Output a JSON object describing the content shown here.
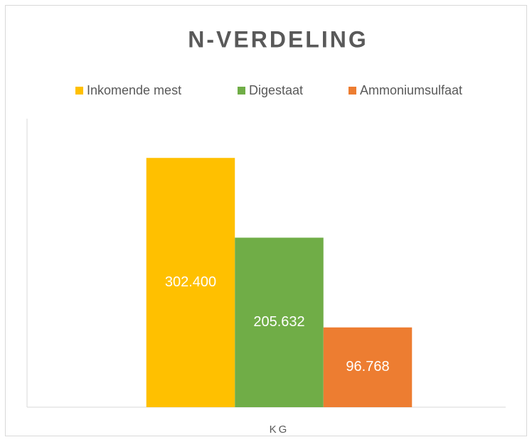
{
  "chart_data": {
    "type": "bar",
    "title": "N-VERDELING",
    "categories": [
      "KG"
    ],
    "series": [
      {
        "name": "Inkomende mest",
        "color": "#ffc000",
        "values": [
          302400
        ],
        "value_labels": [
          "302.400"
        ]
      },
      {
        "name": "Digestaat",
        "color": "#70ad47",
        "values": [
          205632
        ],
        "value_labels": [
          "205.632"
        ]
      },
      {
        "name": "Ammoniumsulfaat",
        "color": "#ed7d31",
        "values": [
          96768
        ],
        "value_labels": [
          "96.768"
        ]
      }
    ],
    "ylim": [
      0,
      350000
    ],
    "legend": "top"
  }
}
